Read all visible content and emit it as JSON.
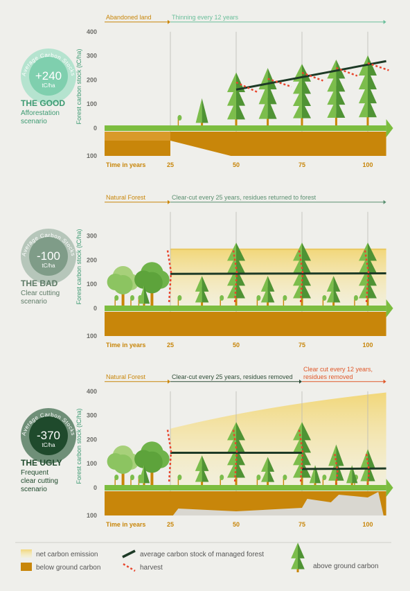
{
  "panels": [
    {
      "badge": {
        "caption": "Average Carbon Stocks",
        "value": "+240",
        "unit": "tC/ha"
      },
      "title": "THE GOOD",
      "subtitle_lines": [
        "Afforestation",
        "scenario"
      ],
      "phases": [
        {
          "label_lines": [
            "Abandoned land"
          ]
        },
        {
          "label_lines": [
            "Thinning every 12 years"
          ]
        }
      ],
      "y_label": "Forest carbon stock (tC/ha)",
      "yticks": [
        400,
        300,
        200,
        100,
        0,
        {
          "value": -100,
          "label": "100"
        }
      ],
      "x_label": "Time in years",
      "xticks": [
        25,
        50,
        75,
        100
      ]
    },
    {
      "badge": {
        "caption": "Average Carbon Stocks",
        "value": "-100",
        "unit": "tC/ha"
      },
      "title": "THE BAD",
      "subtitle_lines": [
        "Clear cutting",
        "scenario"
      ],
      "phases": [
        {
          "label_lines": [
            "Natural Forest"
          ]
        },
        {
          "label_lines": [
            "Clear-cut every 25 years, residues returned to forest"
          ]
        }
      ],
      "y_label": "Forest carbon stock (tC/ha)",
      "yticks": [
        300,
        200,
        100,
        0,
        {
          "value": -100,
          "label": "100"
        }
      ],
      "x_label": "Time in years",
      "xticks": [
        25,
        50,
        75,
        100
      ]
    },
    {
      "badge": {
        "caption": "Average Carbon Stocks",
        "value": "-370",
        "unit": "tC/ha"
      },
      "title": "THE UGLY",
      "subtitle_lines": [
        "Frequent",
        "clear cutting",
        "scenario"
      ],
      "phases": [
        {
          "label_lines": [
            "Natural Forest"
          ]
        },
        {
          "label_lines": [
            "Clear-cut every 25 years, residues removed"
          ]
        },
        {
          "label_lines": [
            "Clear cut every 12 years,",
            "residues removed"
          ]
        }
      ],
      "y_label": "Forest carbon stock (tC/ha)",
      "yticks": [
        400,
        300,
        200,
        100,
        0,
        {
          "value": -100,
          "label": "100"
        }
      ],
      "x_label": "Time in years",
      "xticks": [
        25,
        50,
        75,
        100
      ]
    }
  ],
  "legend": {
    "net_emission": "net carbon emission",
    "below_ground": "below ground carbon",
    "average": "average carbon stock of managed forest",
    "harvest": "harvest",
    "above_ground": "above ground carbon"
  }
}
